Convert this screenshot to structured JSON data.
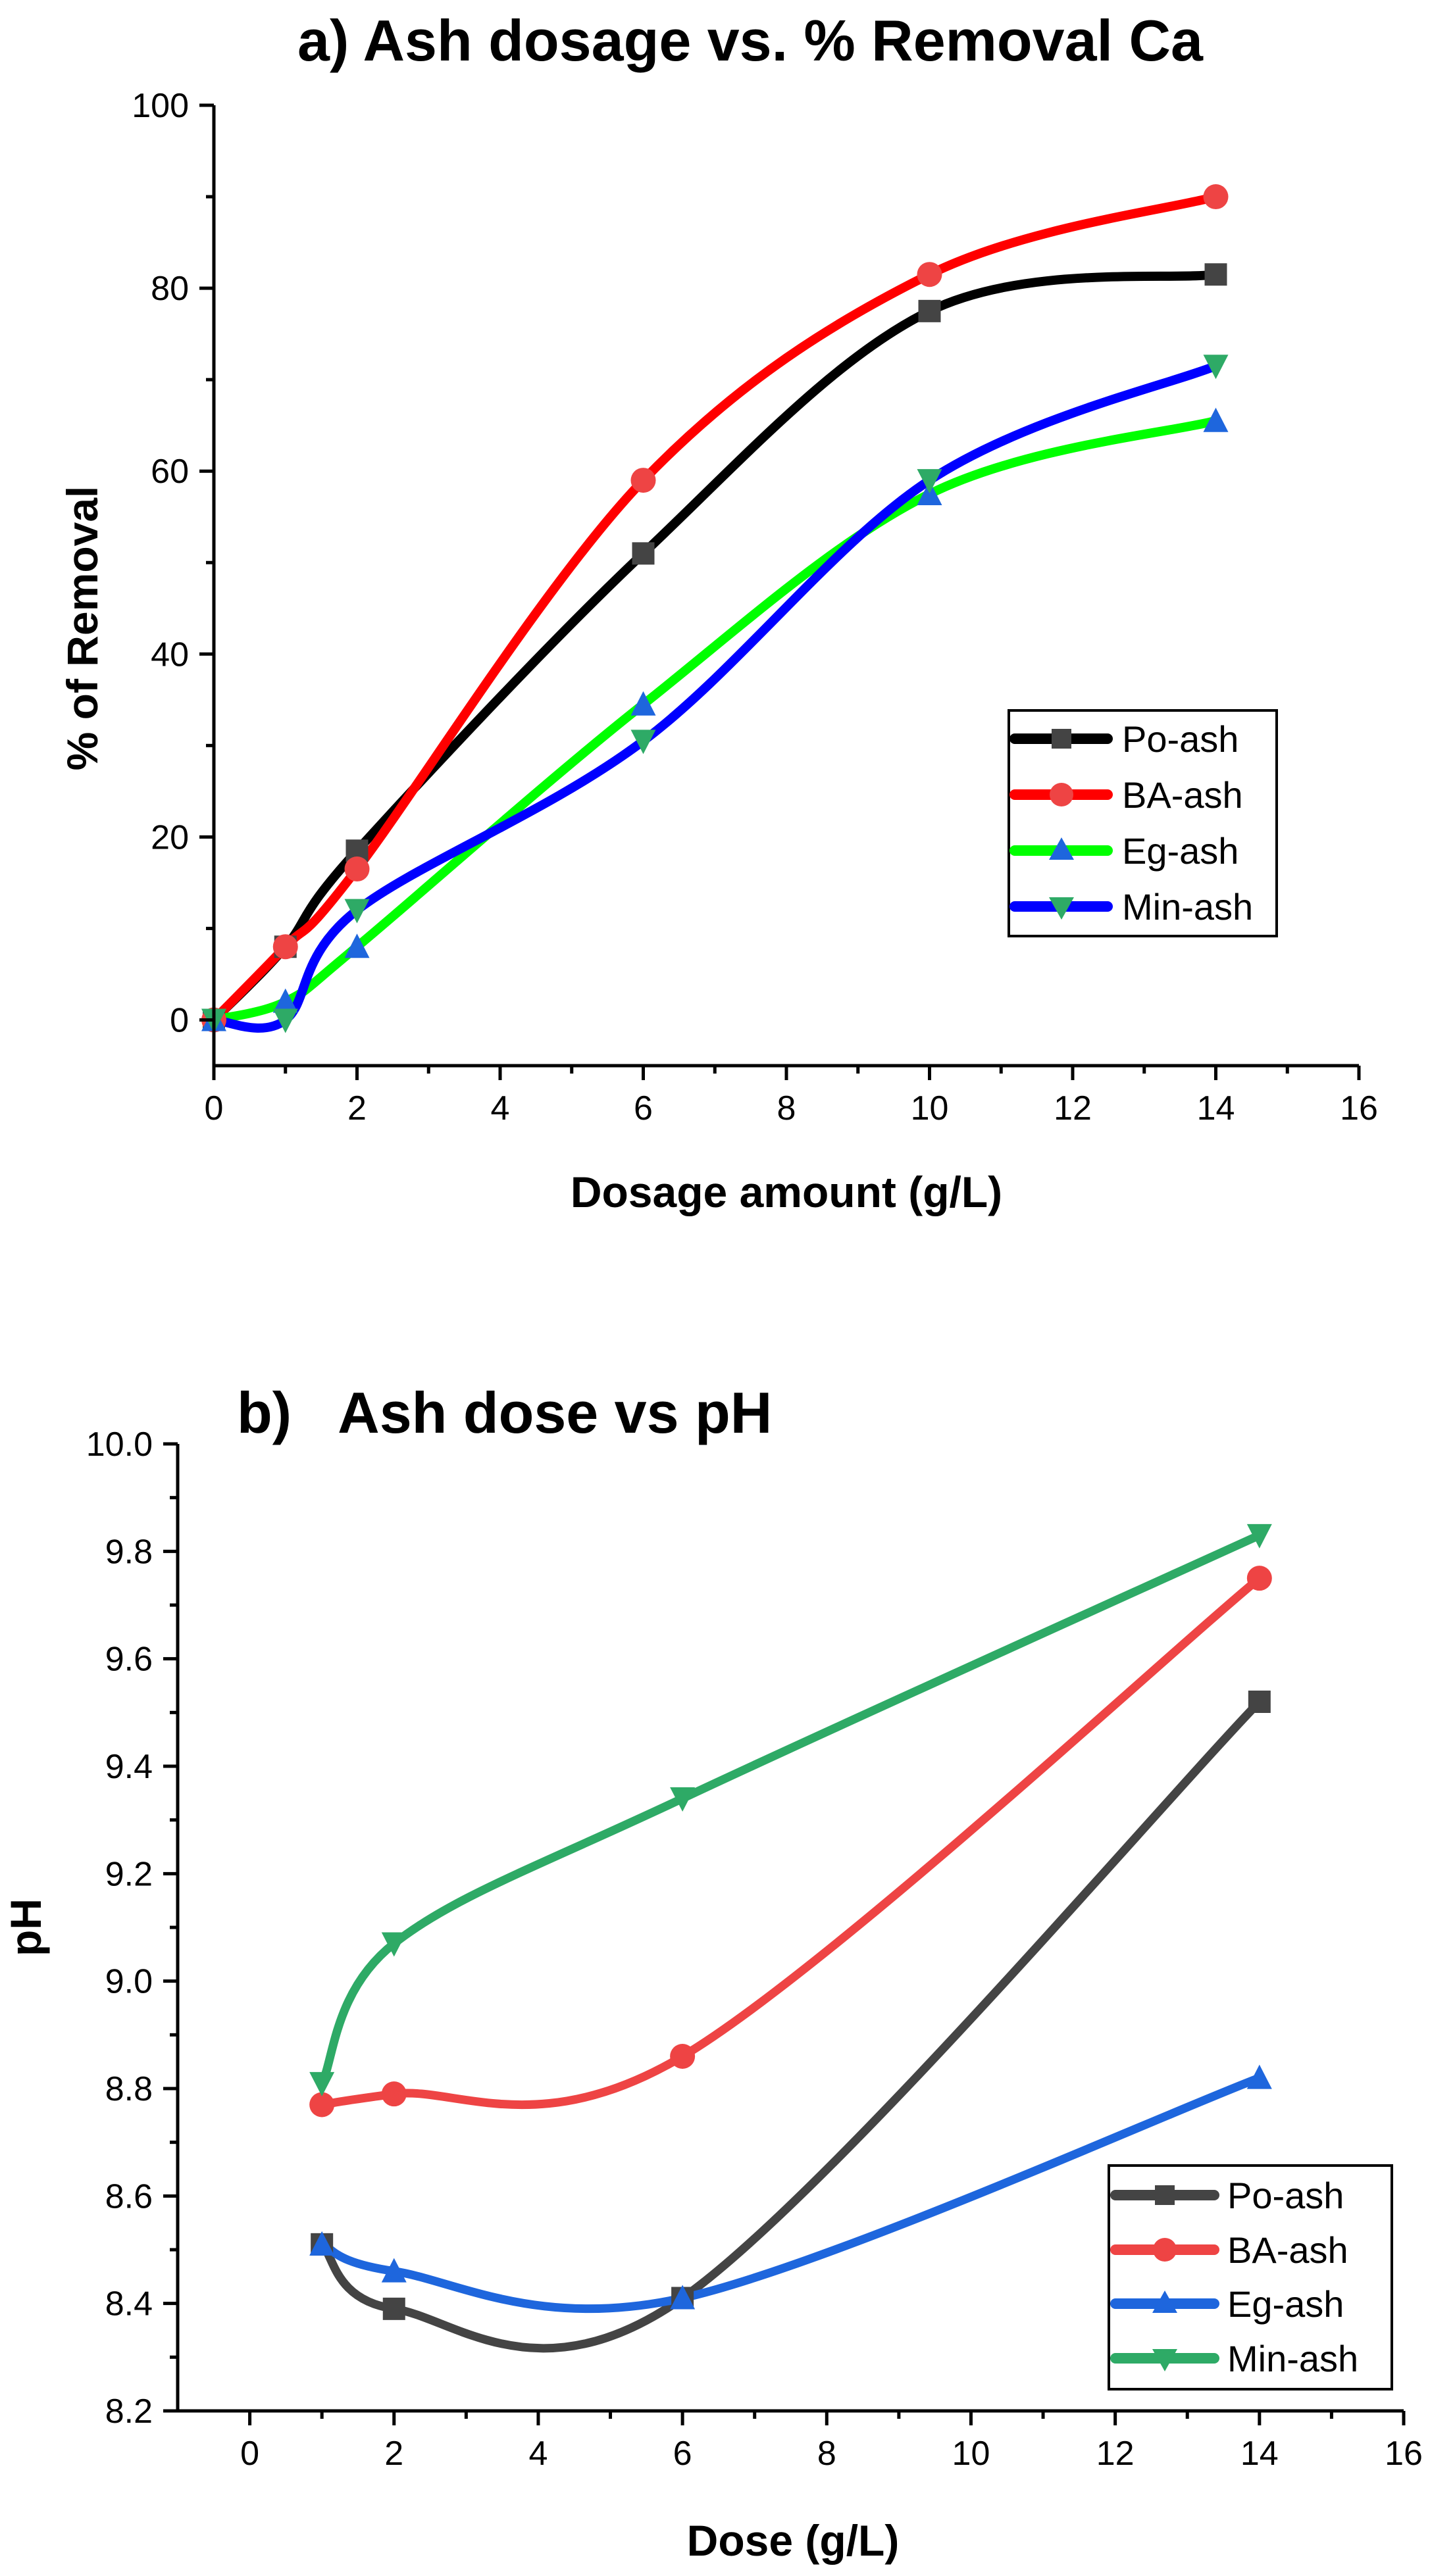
{
  "chart_data": [
    {
      "type": "line",
      "title": "a)  Ash dosage  vs. % Removal Ca",
      "xlabel": "Dosage amount (g/L)",
      "ylabel": "% of Removal",
      "xlim": [
        0,
        16
      ],
      "ylim": [
        -5,
        100
      ],
      "xticks": [
        0,
        2,
        4,
        6,
        8,
        10,
        12,
        14,
        16
      ],
      "yticks": [
        0,
        20,
        40,
        60,
        80,
        100
      ],
      "xtick_labels": [
        "0",
        "2",
        "4",
        "6",
        "8",
        "10",
        "12",
        "14",
        "16"
      ],
      "ytick_labels": [
        "0",
        "20",
        "40",
        "60",
        "80",
        "100"
      ],
      "legend_position": "center-right",
      "series": [
        {
          "name": "Po-ash",
          "color": "#000000",
          "marker_color": "#444444",
          "marker": "square",
          "x": [
            0,
            1,
            2,
            6,
            10,
            14
          ],
          "y": [
            0,
            8,
            18.5,
            51,
            77.5,
            81.5
          ]
        },
        {
          "name": "BA-ash",
          "color": "#ff0000",
          "marker_color": "#ee4444",
          "marker": "circle",
          "x": [
            0,
            1,
            2,
            6,
            10,
            14
          ],
          "y": [
            0,
            8,
            16.5,
            59,
            81.5,
            90
          ]
        },
        {
          "name": "Eg-ash",
          "color": "#00ff00",
          "marker_color": "#1e66dd",
          "marker": "triangle-up",
          "x": [
            0,
            1,
            2,
            6,
            10,
            14
          ],
          "y": [
            0,
            2,
            8,
            34.5,
            57.5,
            65.5
          ]
        },
        {
          "name": "Min-ash",
          "color": "#0000ff",
          "marker_color": "#2eaa66",
          "marker": "triangle-down",
          "x": [
            0,
            1,
            2,
            6,
            10,
            14
          ],
          "y": [
            0,
            0,
            12,
            30.5,
            59,
            71.5
          ]
        }
      ]
    },
    {
      "type": "line",
      "title": "b)   Ash dose vs pH",
      "xlabel": "Dose (g/L)",
      "ylabel": "pH",
      "xlim": [
        -1,
        16
      ],
      "ylim": [
        8.2,
        10.0
      ],
      "xticks": [
        0,
        2,
        4,
        6,
        8,
        10,
        12,
        14,
        16
      ],
      "yticks": [
        8.2,
        8.4,
        8.6,
        8.8,
        9.0,
        9.2,
        9.4,
        9.6,
        9.8,
        10.0
      ],
      "xtick_labels": [
        "0",
        "2",
        "4",
        "6",
        "8",
        "10",
        "12",
        "14",
        "16"
      ],
      "ytick_labels": [
        "8.2",
        "8.4",
        "8.6",
        "8.8",
        "9.0",
        "9.2",
        "9.4",
        "9.6",
        "9.8",
        "10.0"
      ],
      "legend_position": "bottom-right",
      "series": [
        {
          "name": "Po-ash",
          "color": "#444444",
          "marker_color": "#444444",
          "marker": "square",
          "x": [
            1,
            2,
            6,
            14
          ],
          "y": [
            8.51,
            8.39,
            8.41,
            9.52
          ]
        },
        {
          "name": "BA-ash",
          "color": "#ee4444",
          "marker_color": "#ee4444",
          "marker": "circle",
          "x": [
            1,
            2,
            6,
            14
          ],
          "y": [
            8.77,
            8.79,
            8.86,
            9.75
          ]
        },
        {
          "name": "Eg-ash",
          "color": "#1e66dd",
          "marker_color": "#1e66dd",
          "marker": "triangle-up",
          "x": [
            1,
            2,
            6,
            14
          ],
          "y": [
            8.51,
            8.46,
            8.41,
            8.82
          ]
        },
        {
          "name": "Min-ash",
          "color": "#2eaa66",
          "marker_color": "#2eaa66",
          "marker": "triangle-down",
          "x": [
            1,
            2,
            6,
            14
          ],
          "y": [
            8.81,
            9.07,
            9.34,
            9.83
          ]
        }
      ]
    }
  ]
}
